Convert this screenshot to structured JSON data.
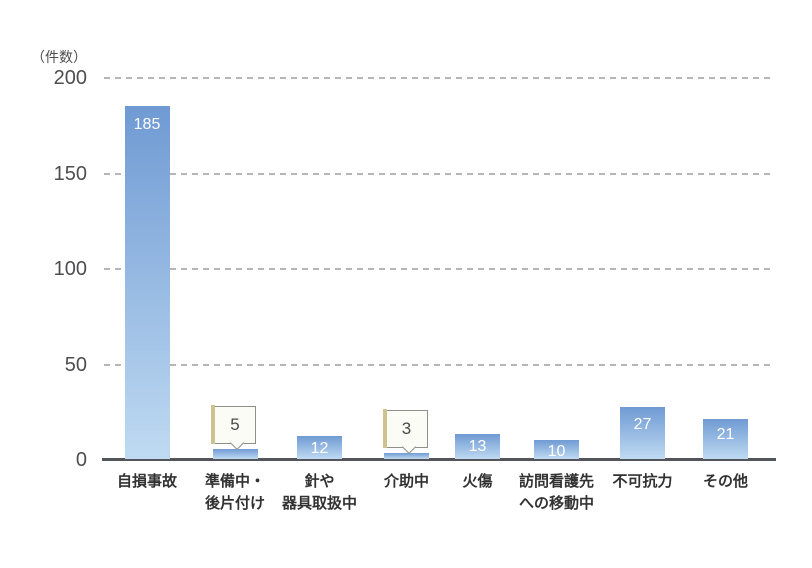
{
  "chart_data": {
    "type": "bar",
    "title": "",
    "unit_label": "（件数）",
    "categories": [
      "自損事故",
      "準備中・\n後片付け",
      "針や\n器具取扱中",
      "介助中",
      "火傷",
      "訪問看護先\nへの移動中",
      "不可抗力",
      "その他"
    ],
    "values": [
      185,
      5,
      12,
      3,
      13,
      10,
      27,
      21
    ],
    "callout_indices": [
      1,
      3
    ],
    "xlabel": "",
    "ylabel": "件数",
    "ylim": [
      0,
      200
    ],
    "yticks": [
      0,
      50,
      100,
      150,
      200
    ],
    "grid": "horizontal-dashed",
    "legend": "none",
    "colors": {
      "bar_top": "#6f9ad3",
      "bar_bottom": "#bfdaf2",
      "bar_value_text": "#ffffff",
      "axis": "#54555a",
      "gridline": "#b6b6b6",
      "tick_text": "#4e4e50",
      "category_text": "#323232",
      "callout_bg": "#fcfcf6",
      "callout_border": "#90908a",
      "callout_fold": "#cdc390",
      "callout_text": "#4a4a4a"
    }
  }
}
